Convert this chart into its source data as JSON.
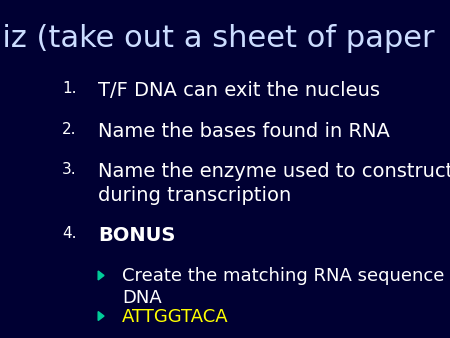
{
  "title": "Quiz (take out a sheet of paper",
  "background_color": "#000033",
  "title_color": "#ccddff",
  "text_color": "#ffffff",
  "bullet_color": "#00cc99",
  "yellow_color": "#ffff00",
  "title_fontsize": 22,
  "body_fontsize": 14,
  "number_fontsize": 11,
  "items": [
    {
      "num": "1.",
      "text": "T/F DNA can exit the nucleus"
    },
    {
      "num": "2.",
      "text": "Name the bases found in RNA"
    },
    {
      "num": "3.",
      "text": "Name the enzyme used to construct RNA\nduring transcription"
    },
    {
      "num": "4.",
      "text": "BONUS",
      "bold": true
    }
  ],
  "sub_bullets": [
    {
      "text": "Create the matching RNA sequence for this\nDNA",
      "color": "#ffffff"
    },
    {
      "text": "ATTGGTACA",
      "color": "#ffff00"
    }
  ]
}
